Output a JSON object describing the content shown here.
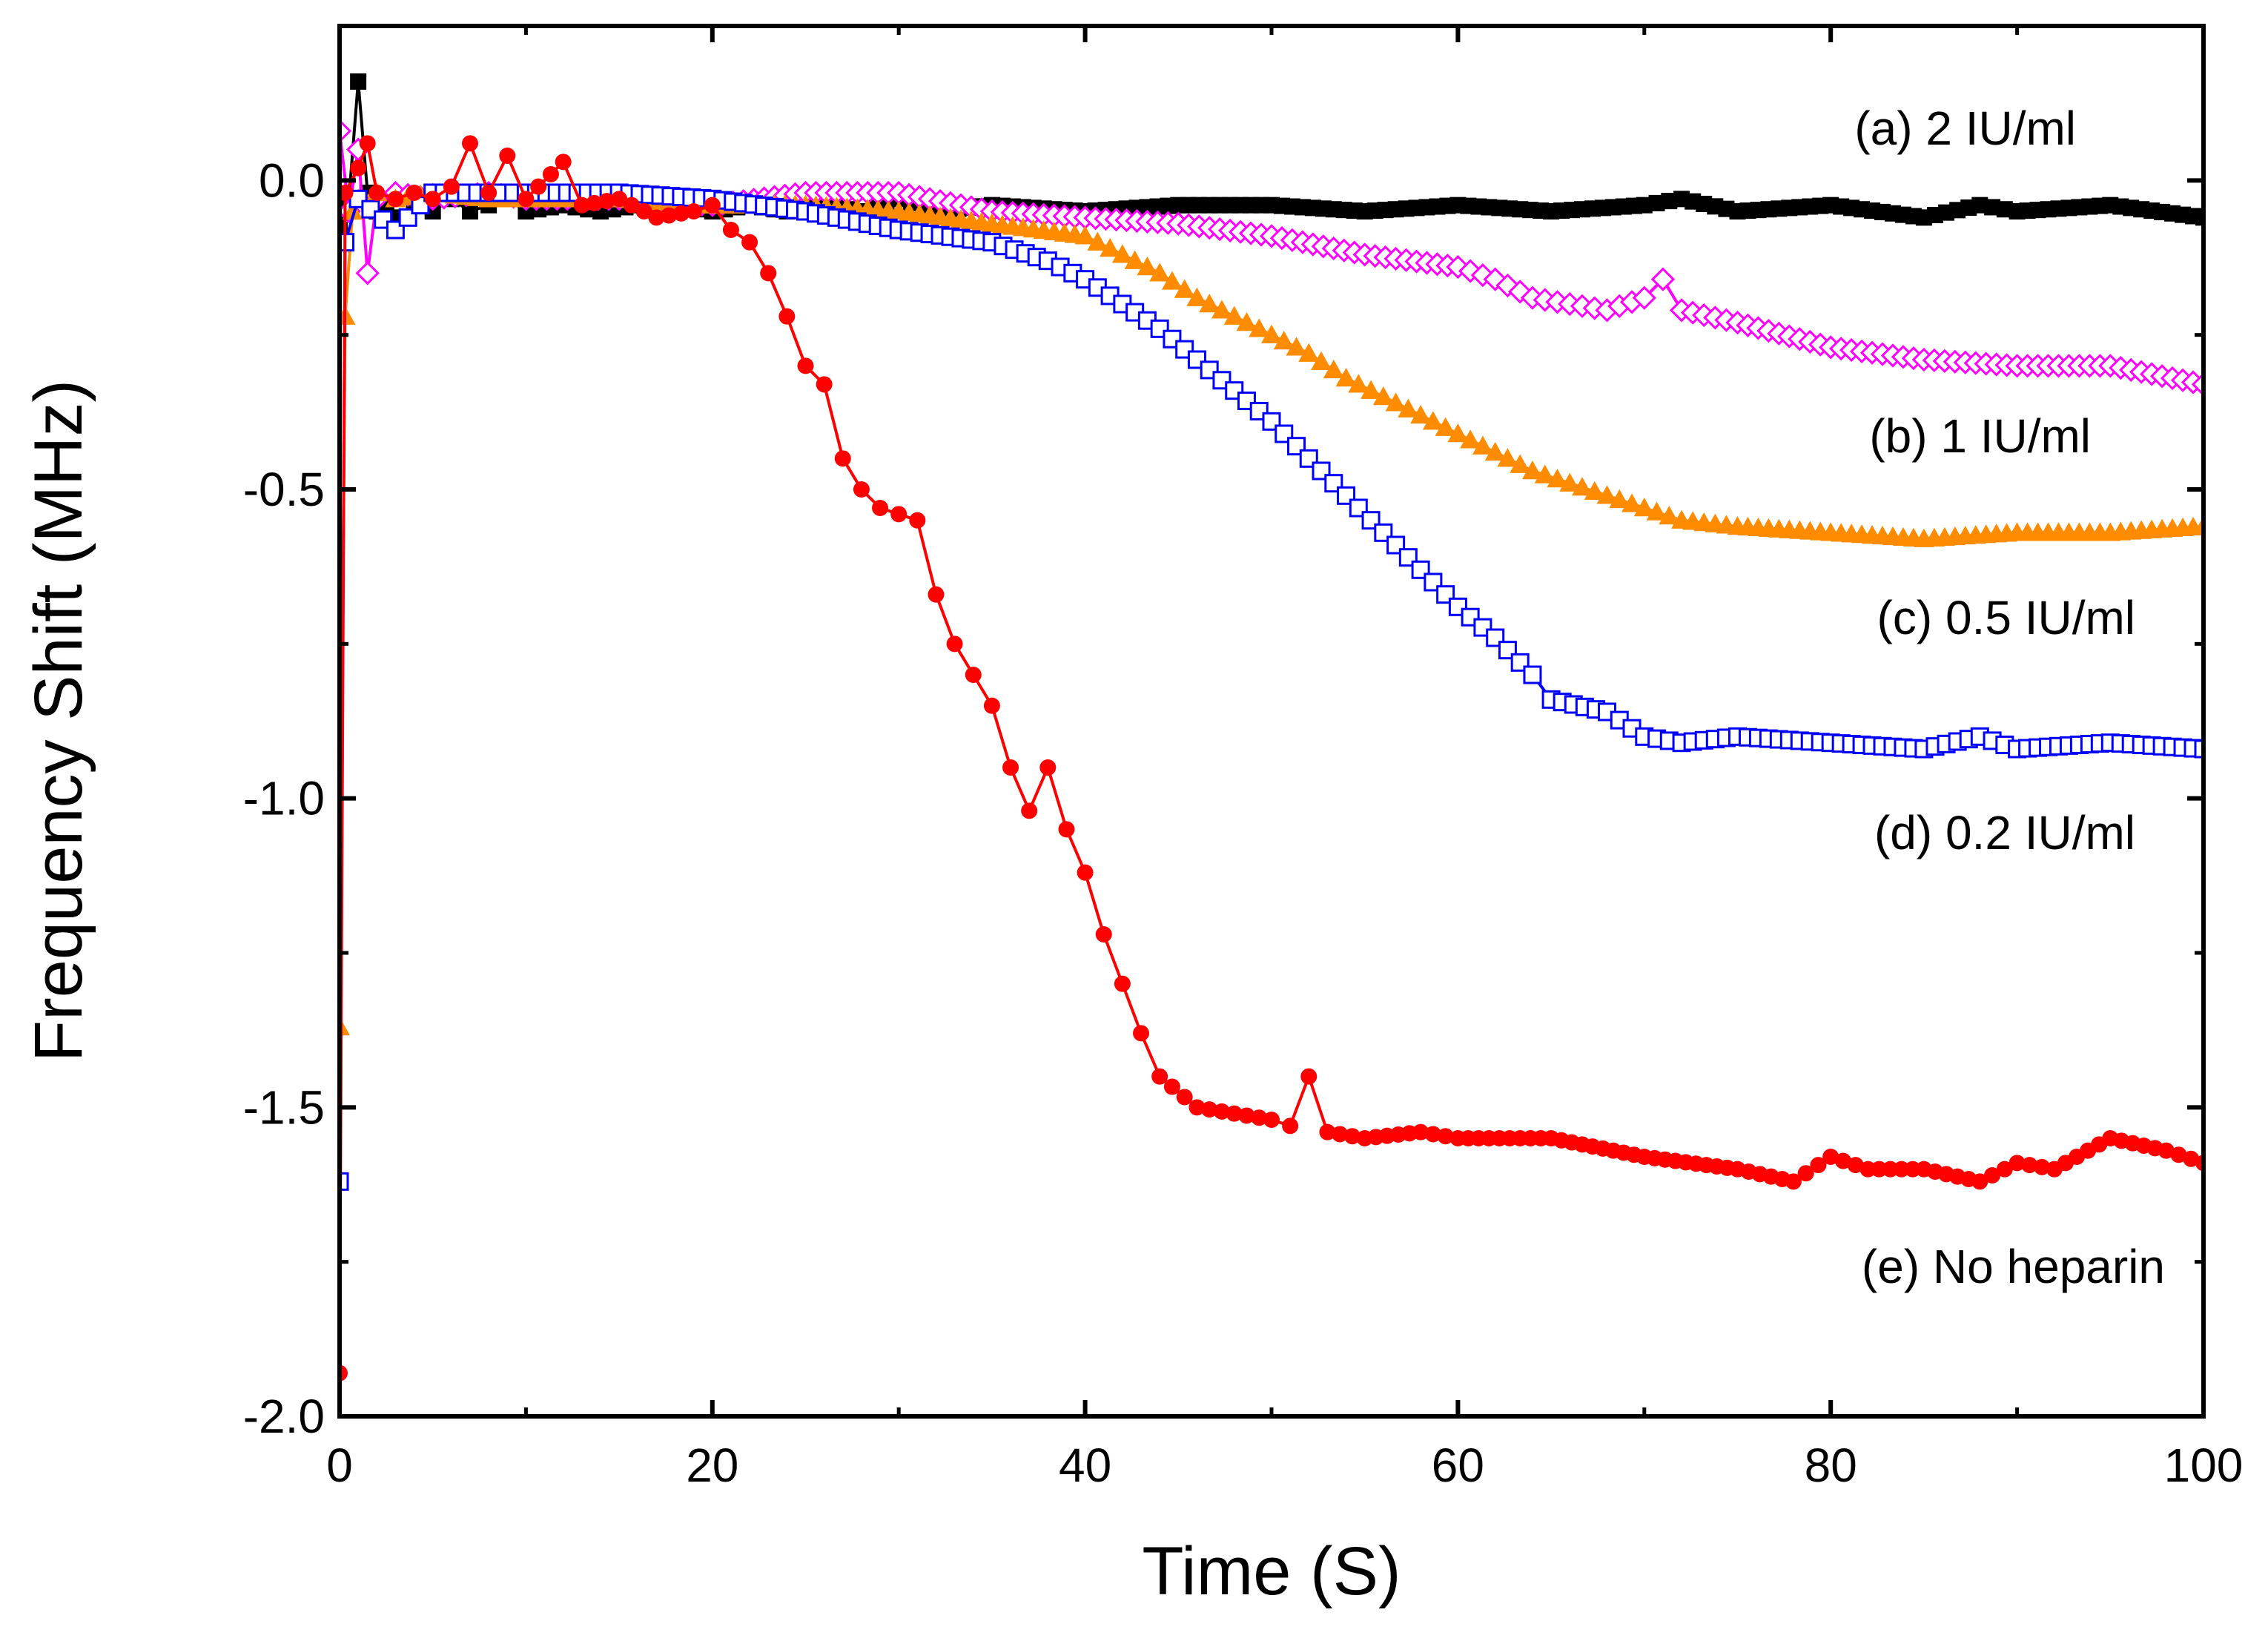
{
  "chart_data": {
    "type": "line",
    "xlabel": "Time (S)",
    "ylabel": "Frequency Shift (MHz)",
    "xlim": [
      0,
      100
    ],
    "ylim": [
      -2.0,
      0.25
    ],
    "x_ticks": [
      0,
      20,
      40,
      60,
      80,
      100
    ],
    "x_tick_labels": [
      "0",
      "20",
      "40",
      "60",
      "80",
      "100"
    ],
    "y_ticks": [
      0.0,
      -0.5,
      -1.0,
      -1.5,
      -2.0
    ],
    "y_tick_labels": [
      "0.0",
      "-0.5",
      "-1.0",
      "-1.5",
      "-2.0"
    ],
    "grid": false,
    "series": [
      {
        "name": "(a) 2 IU/ml",
        "color": "#000000",
        "marker": "square-filled",
        "x": [
          0,
          0.5,
          1,
          1.5,
          2,
          2.5,
          3,
          4,
          5,
          6,
          7,
          8,
          9,
          10,
          12,
          14,
          16,
          18,
          20,
          22,
          24,
          26,
          28,
          30,
          32,
          35,
          40,
          45,
          50,
          55,
          60,
          65,
          70,
          72,
          75,
          80,
          85,
          88,
          90,
          95,
          100
        ],
        "y": [
          -0.08,
          -0.03,
          0.16,
          -0.02,
          -0.05,
          -0.04,
          -0.06,
          -0.04,
          -0.05,
          -0.03,
          -0.05,
          -0.04,
          -0.03,
          -0.05,
          -0.04,
          -0.05,
          -0.04,
          -0.04,
          -0.05,
          -0.04,
          -0.05,
          -0.04,
          -0.05,
          -0.03,
          -0.05,
          -0.04,
          -0.05,
          -0.04,
          -0.04,
          -0.05,
          -0.04,
          -0.05,
          -0.04,
          -0.03,
          -0.05,
          -0.04,
          -0.06,
          -0.04,
          -0.05,
          -0.04,
          -0.06
        ]
      },
      {
        "name": "(b) 1 IU/ml",
        "color": "#ff00ff",
        "marker": "diamond-open",
        "x": [
          0,
          0.5,
          1,
          1.5,
          2,
          3,
          5,
          8,
          10,
          15,
          20,
          25,
          30,
          35,
          40,
          45,
          50,
          55,
          60,
          62,
          64,
          66,
          68,
          70,
          71,
          72,
          75,
          80,
          85,
          90,
          95,
          100
        ],
        "y": [
          0.08,
          -0.05,
          0.05,
          -0.15,
          -0.03,
          -0.02,
          -0.03,
          -0.02,
          -0.03,
          -0.03,
          -0.04,
          -0.02,
          -0.02,
          -0.05,
          -0.06,
          -0.07,
          -0.09,
          -0.12,
          -0.14,
          -0.16,
          -0.19,
          -0.2,
          -0.21,
          -0.19,
          -0.16,
          -0.21,
          -0.23,
          -0.27,
          -0.29,
          -0.3,
          -0.3,
          -0.33
        ]
      },
      {
        "name": "(c) 0.5 IU/ml",
        "color": "#ff8c00",
        "marker": "triangle-filled",
        "x": [
          0,
          0.3,
          0.7,
          1,
          2,
          3,
          5,
          8,
          10,
          15,
          20,
          25,
          30,
          35,
          40,
          42,
          44,
          46,
          48,
          50,
          52,
          54,
          56,
          58,
          60,
          62,
          64,
          66,
          68,
          70,
          72,
          75,
          80,
          85,
          90,
          95,
          100
        ],
        "y": [
          -1.37,
          -0.22,
          -0.05,
          -0.03,
          -0.02,
          -0.03,
          -0.02,
          -0.03,
          -0.03,
          -0.03,
          -0.04,
          -0.04,
          -0.05,
          -0.07,
          -0.09,
          -0.12,
          -0.15,
          -0.19,
          -0.22,
          -0.25,
          -0.28,
          -0.32,
          -0.35,
          -0.38,
          -0.41,
          -0.44,
          -0.47,
          -0.49,
          -0.51,
          -0.53,
          -0.55,
          -0.56,
          -0.57,
          -0.58,
          -0.57,
          -0.57,
          -0.56
        ]
      },
      {
        "name": "(d) 0.2 IU/ml",
        "color": "#0000ff",
        "marker": "square-open",
        "x": [
          0,
          0.3,
          1,
          3,
          5,
          8,
          10,
          15,
          20,
          25,
          30,
          35,
          38,
          40,
          42,
          44,
          46,
          48,
          50,
          52,
          54,
          56,
          58,
          60,
          62,
          64,
          65,
          68,
          70,
          72,
          75,
          80,
          85,
          88,
          90,
          95,
          100
        ],
        "y": [
          -1.62,
          -0.1,
          -0.03,
          -0.08,
          -0.02,
          -0.02,
          -0.02,
          -0.02,
          -0.03,
          -0.05,
          -0.08,
          -0.1,
          -0.13,
          -0.16,
          -0.2,
          -0.24,
          -0.29,
          -0.34,
          -0.39,
          -0.45,
          -0.51,
          -0.57,
          -0.63,
          -0.69,
          -0.74,
          -0.8,
          -0.84,
          -0.86,
          -0.9,
          -0.91,
          -0.9,
          -0.91,
          -0.92,
          -0.9,
          -0.92,
          -0.91,
          -0.92
        ]
      },
      {
        "name": "(e) No heparin",
        "color": "#ff0000",
        "marker": "circle-filled",
        "x": [
          0,
          0.3,
          1,
          1.5,
          2,
          3,
          4,
          5,
          6,
          7,
          8,
          9,
          10,
          12,
          13,
          15,
          17,
          19,
          20,
          21,
          22,
          23,
          24,
          25,
          26,
          27,
          28,
          29,
          30,
          31,
          32,
          33,
          34,
          35,
          36,
          37,
          38,
          39,
          40,
          41,
          42,
          43,
          44,
          46,
          48,
          50,
          51,
          52,
          53,
          55,
          58,
          60,
          65,
          70,
          75,
          78,
          80,
          82,
          85,
          88,
          90,
          92,
          95,
          98,
          100
        ],
        "y": [
          -1.93,
          -0.02,
          0.02,
          0.06,
          -0.02,
          -0.03,
          -0.02,
          -0.03,
          -0.01,
          0.06,
          -0.02,
          0.04,
          -0.03,
          0.03,
          -0.04,
          -0.03,
          -0.06,
          -0.05,
          -0.04,
          -0.08,
          -0.1,
          -0.15,
          -0.22,
          -0.3,
          -0.33,
          -0.45,
          -0.5,
          -0.53,
          -0.54,
          -0.55,
          -0.67,
          -0.75,
          -0.8,
          -0.85,
          -0.95,
          -1.02,
          -0.95,
          -1.05,
          -1.12,
          -1.22,
          -1.3,
          -1.38,
          -1.45,
          -1.5,
          -1.51,
          -1.52,
          -1.53,
          -1.45,
          -1.54,
          -1.55,
          -1.54,
          -1.55,
          -1.55,
          -1.58,
          -1.6,
          -1.62,
          -1.58,
          -1.6,
          -1.6,
          -1.62,
          -1.59,
          -1.6,
          -1.55,
          -1.57,
          -1.59
        ]
      }
    ]
  }
}
